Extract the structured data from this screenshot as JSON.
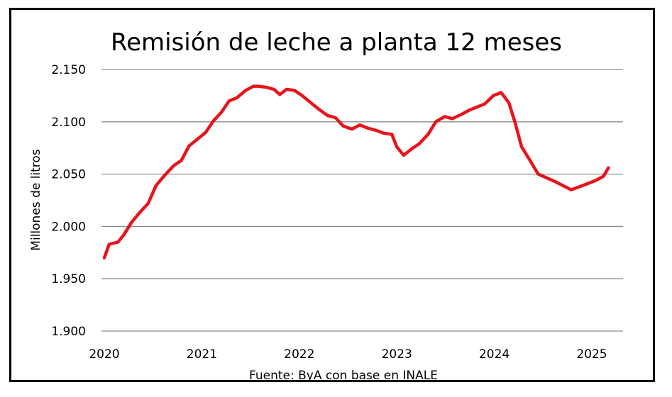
{
  "chart_data": {
    "type": "line",
    "title": "Remisión de leche a planta 12 meses",
    "ylabel": "Millones de litros",
    "source": "Fuente: ByA con base en INALE",
    "ylim": [
      1900,
      2150
    ],
    "yticks": [
      1900,
      1950,
      2000,
      2050,
      2100,
      2150
    ],
    "ytick_labels": [
      "1.900",
      "1.950",
      "2.000",
      "2.050",
      "2.100",
      "2.150"
    ],
    "xlim": [
      2020.0,
      2025.0
    ],
    "xticks": [
      2020,
      2021,
      2022,
      2023,
      2024,
      2025
    ],
    "xtick_labels": [
      "2020",
      "2021",
      "2022",
      "2023",
      "2024",
      "2025"
    ],
    "grid": "horizontal",
    "series": [
      {
        "color": "#e8141b",
        "x": [
          2020.0,
          2020.05,
          2020.14,
          2020.2,
          2020.28,
          2020.36,
          2020.45,
          2020.53,
          2020.62,
          2020.71,
          2020.79,
          2020.87,
          2020.95,
          2021.04,
          2021.12,
          2021.2,
          2021.28,
          2021.36,
          2021.45,
          2021.53,
          2021.58,
          2021.66,
          2021.74,
          2021.8,
          2021.87,
          2021.95,
          2022.03,
          2022.12,
          2022.2,
          2022.29,
          2022.37,
          2022.45,
          2022.54,
          2022.62,
          2022.7,
          2022.78,
          2022.87,
          2022.95,
          2023.0,
          2023.07,
          2023.15,
          2023.23,
          2023.32,
          2023.4,
          2023.49,
          2023.57,
          2023.66,
          2023.74,
          2023.82,
          2023.9,
          2023.99,
          2024.07,
          2024.15,
          2024.21,
          2024.28,
          2024.36,
          2024.45,
          2024.62,
          2024.79,
          2024.96,
          2025.04,
          2025.12,
          2025.17
        ],
        "y": [
          1970,
          1983,
          1985,
          1992,
          2004,
          2013,
          2022,
          2039,
          2049,
          2058,
          2063,
          2077,
          2083,
          2090,
          2101,
          2109,
          2120,
          2123,
          2130,
          2134,
          2134,
          2133,
          2131,
          2126,
          2131,
          2130,
          2125,
          2118,
          2112,
          2106,
          2104,
          2096,
          2093,
          2097,
          2094,
          2092,
          2089,
          2088,
          2076,
          2068,
          2074,
          2079,
          2088,
          2100,
          2105,
          2103,
          2107,
          2111,
          2114,
          2117,
          2125,
          2128,
          2118,
          2100,
          2076,
          2064,
          2050,
          2043,
          2035,
          2041,
          2044,
          2048,
          2056
        ]
      }
    ]
  }
}
